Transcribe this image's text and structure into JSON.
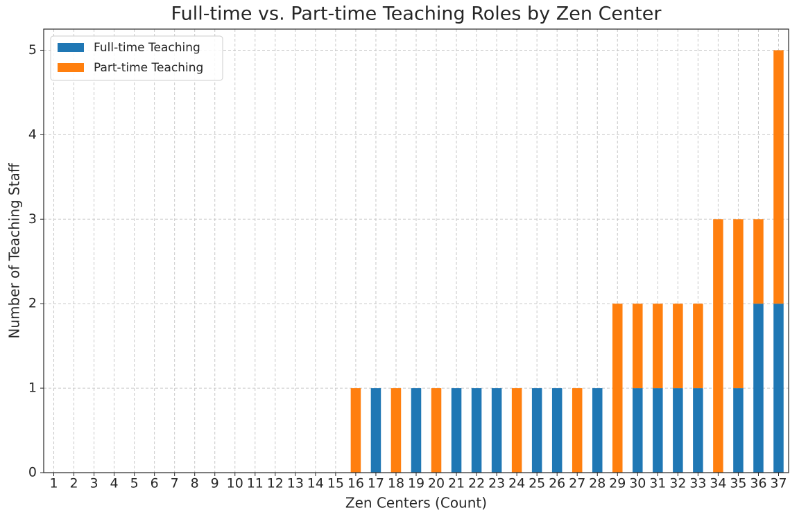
{
  "chart_data": {
    "type": "stacked_bar",
    "title": "Full-time vs. Part-time Teaching Roles by Zen Center",
    "x_label": "Zen Centers (Count)",
    "y_label": "Number of Teaching Staff",
    "categories": [
      "1",
      "2",
      "3",
      "4",
      "5",
      "6",
      "7",
      "8",
      "9",
      "10",
      "11",
      "12",
      "13",
      "14",
      "15",
      "16",
      "17",
      "18",
      "19",
      "20",
      "21",
      "22",
      "23",
      "24",
      "25",
      "26",
      "27",
      "28",
      "29",
      "30",
      "31",
      "32",
      "33",
      "34",
      "35",
      "36",
      "37"
    ],
    "series": [
      {
        "name": "Full-time Teaching",
        "color": "#1f77b4",
        "values": [
          0,
          0,
          0,
          0,
          0,
          0,
          0,
          0,
          0,
          0,
          0,
          0,
          0,
          0,
          0,
          0,
          1,
          0,
          1,
          0,
          1,
          1,
          1,
          0,
          1,
          1,
          0,
          1,
          0,
          1,
          1,
          1,
          1,
          0,
          1,
          2,
          2
        ]
      },
      {
        "name": "Part-time Teaching",
        "color": "#ff7f0e",
        "values": [
          0,
          0,
          0,
          0,
          0,
          0,
          0,
          0,
          0,
          0,
          0,
          0,
          0,
          0,
          0,
          1,
          0,
          1,
          0,
          1,
          0,
          0,
          0,
          1,
          0,
          0,
          1,
          0,
          2,
          1,
          1,
          1,
          1,
          3,
          2,
          1,
          3
        ]
      }
    ],
    "ylim": [
      0,
      5.25
    ],
    "yticks": [
      0,
      1,
      2,
      3,
      4,
      5
    ],
    "grid": true,
    "legend": "upper left"
  }
}
